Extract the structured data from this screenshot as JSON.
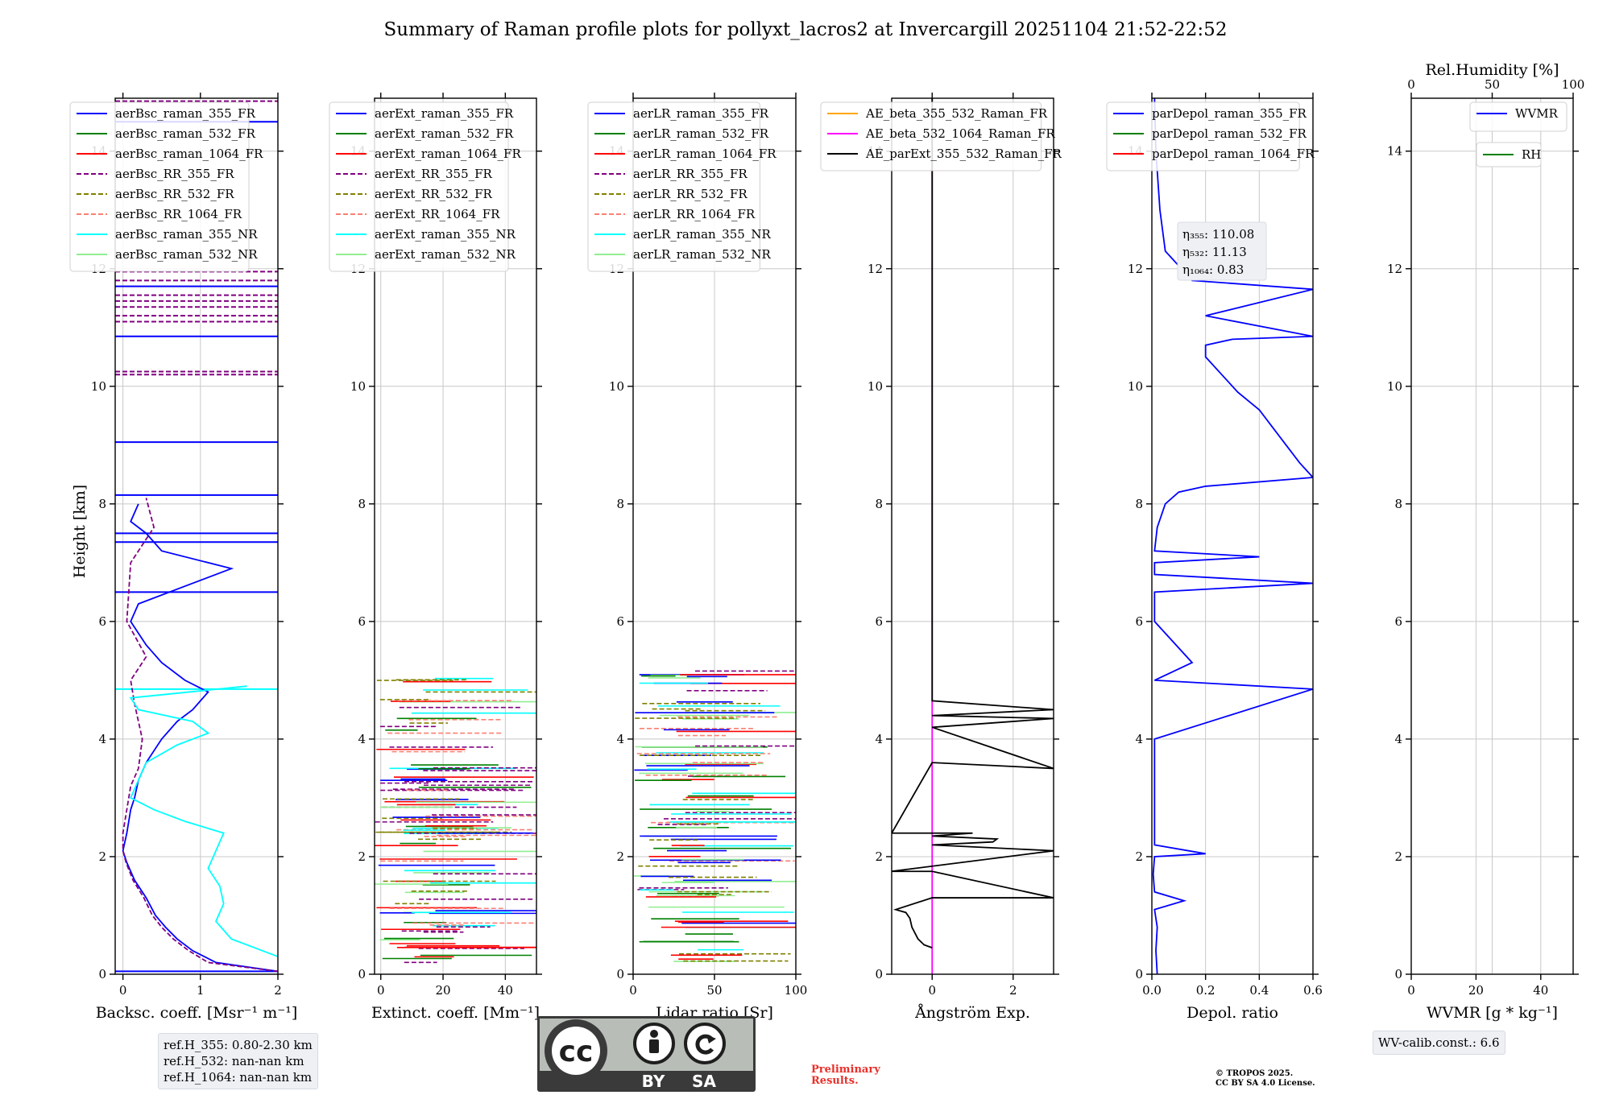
{
  "figure": {
    "title": "Summary of Raman profile plots for pollyxt_lacros2 at Invercargill 20251104 21:52-22:52",
    "ylabel": "Height [km]"
  },
  "chart_data": [
    {
      "type": "line",
      "id": "backscatter",
      "xlabel": "Backsc. coeff. [Msr⁻¹ m⁻¹]",
      "xlim": [
        -0.1,
        2
      ],
      "ylim": [
        0,
        14.9
      ],
      "xticks": [
        0,
        1,
        2
      ],
      "xtick_labels": [
        "0",
        "1",
        "2"
      ],
      "yticks": [
        0,
        2,
        4,
        6,
        8,
        10,
        12,
        14
      ],
      "ytick_labels": [
        "0",
        "2",
        "4",
        "6",
        "8",
        "10",
        "12",
        "14"
      ],
      "grid": true,
      "legend": "top-left",
      "legend_entries": [
        {
          "name": "aerBsc_raman_355_FR",
          "color": "#0000ff",
          "dash": false
        },
        {
          "name": "aerBsc_raman_532_FR",
          "color": "#008000",
          "dash": false
        },
        {
          "name": "aerBsc_raman_1064_FR",
          "color": "#ff0000",
          "dash": false
        },
        {
          "name": "aerBsc_RR_355_FR",
          "color": "#800080",
          "dash": true
        },
        {
          "name": "aerBsc_RR_532_FR",
          "color": "#808000",
          "dash": true
        },
        {
          "name": "aerBsc_RR_1064_FR",
          "color": "#fa8072",
          "dash": true
        },
        {
          "name": "aerBsc_raman_355_NR",
          "color": "#00ffff",
          "dash": false
        },
        {
          "name": "aerBsc_raman_532_NR",
          "color": "#90ee90",
          "dash": false
        }
      ],
      "series": [
        {
          "name": "aerBsc_raman_355_FR",
          "color": "#0000ff",
          "dash": false,
          "x": [
            2.0,
            1.2,
            0.9,
            0.7,
            0.55,
            0.42,
            0.3,
            0.15,
            0.05,
            0.0,
            0.05,
            0.1,
            0.15,
            0.2,
            0.3,
            0.5,
            0.7,
            0.9,
            1.1,
            0.8,
            0.5,
            0.3,
            0.2,
            0.1,
            0.2,
            0.8,
            1.4,
            0.5,
            0.3,
            0.1,
            0.2
          ],
          "y": [
            0.05,
            0.2,
            0.4,
            0.6,
            0.8,
            1.0,
            1.3,
            1.6,
            1.9,
            2.1,
            2.4,
            2.8,
            3.0,
            3.3,
            3.6,
            4.0,
            4.3,
            4.5,
            4.8,
            5.0,
            5.3,
            5.6,
            5.8,
            6.0,
            6.3,
            6.6,
            6.9,
            7.2,
            7.5,
            7.7,
            8.0
          ]
        },
        {
          "name": "aerBsc_RR_355_FR",
          "color": "#800080",
          "dash": true,
          "x": [
            2.0,
            1.1,
            0.85,
            0.65,
            0.5,
            0.38,
            0.27,
            0.13,
            0.04,
            0.0,
            0.0,
            0.05,
            0.1,
            0.2,
            0.25,
            0.15,
            0.1,
            0.3,
            0.05,
            0.1,
            0.4,
            0.3
          ],
          "y": [
            0.05,
            0.2,
            0.4,
            0.6,
            0.8,
            1.0,
            1.3,
            1.6,
            1.9,
            2.1,
            2.4,
            2.8,
            3.2,
            3.5,
            4.0,
            4.6,
            5.0,
            5.4,
            6.0,
            7.0,
            7.6,
            8.1
          ]
        },
        {
          "name": "aerBsc_raman_355_NR",
          "color": "#00ffff",
          "dash": false,
          "x": [
            2.0,
            1.4,
            1.2,
            1.3,
            1.25,
            1.1,
            1.2,
            1.3,
            0.8,
            0.4,
            0.1,
            0.2,
            0.3,
            0.7,
            1.1,
            0.9,
            0.2,
            0.1,
            1.6
          ],
          "y": [
            0.3,
            0.6,
            0.9,
            1.2,
            1.5,
            1.8,
            2.1,
            2.4,
            2.6,
            2.8,
            3.0,
            3.3,
            3.6,
            3.9,
            4.1,
            4.3,
            4.5,
            4.7,
            4.9
          ]
        }
      ],
      "hlines": [
        {
          "y": 0.05,
          "color": "#0000ff"
        },
        {
          "y": 4.85,
          "color": "#00ffff"
        },
        {
          "y": 6.5,
          "color": "#0000ff"
        },
        {
          "y": 7.35,
          "color": "#0000ff"
        },
        {
          "y": 7.5,
          "color": "#0000ff"
        },
        {
          "y": 8.15,
          "color": "#0000ff"
        },
        {
          "y": 9.05,
          "color": "#0000ff"
        },
        {
          "y": 10.2,
          "color": "#800080"
        },
        {
          "y": 10.25,
          "color": "#800080"
        },
        {
          "y": 10.85,
          "color": "#0000ff"
        },
        {
          "y": 11.1,
          "color": "#800080"
        },
        {
          "y": 11.2,
          "color": "#800080"
        },
        {
          "y": 11.35,
          "color": "#800080"
        },
        {
          "y": 11.45,
          "color": "#800080"
        },
        {
          "y": 11.55,
          "color": "#800080"
        },
        {
          "y": 11.7,
          "color": "#0000ff"
        },
        {
          "y": 11.8,
          "color": "#800080"
        },
        {
          "y": 11.95,
          "color": "#800080"
        },
        {
          "y": 14.5,
          "color": "#0000ff"
        },
        {
          "y": 14.85,
          "color": "#800080"
        }
      ]
    },
    {
      "type": "line",
      "id": "extinction",
      "xlabel": "Extinct. coeff. [Mm⁻¹]",
      "xlim": [
        -2,
        50
      ],
      "ylim": [
        0,
        14.9
      ],
      "xticks": [
        0,
        20,
        40
      ],
      "xtick_labels": [
        "0",
        "20",
        "40"
      ],
      "yticks": [
        0,
        2,
        4,
        6,
        8,
        10,
        12,
        14
      ],
      "ytick_labels": [
        "0",
        "2",
        "4",
        "6",
        "8",
        "10",
        "12",
        "14"
      ],
      "grid": true,
      "legend": "top-left",
      "legend_entries": [
        {
          "name": "aerExt_raman_355_FR",
          "color": "#0000ff",
          "dash": false
        },
        {
          "name": "aerExt_raman_532_FR",
          "color": "#008000",
          "dash": false
        },
        {
          "name": "aerExt_raman_1064_FR",
          "color": "#ff0000",
          "dash": false
        },
        {
          "name": "aerExt_RR_355_FR",
          "color": "#800080",
          "dash": true
        },
        {
          "name": "aerExt_RR_532_FR",
          "color": "#808000",
          "dash": true
        },
        {
          "name": "aerExt_RR_1064_FR",
          "color": "#fa8072",
          "dash": true
        },
        {
          "name": "aerExt_raman_355_NR",
          "color": "#00ffff",
          "dash": false
        },
        {
          "name": "aerExt_raman_532_NR",
          "color": "#90ee90",
          "dash": false
        }
      ],
      "series": [],
      "hlines_band": {
        "from": 0.2,
        "to": 5.2
      }
    },
    {
      "type": "line",
      "id": "lidar_ratio",
      "xlabel": "Lidar ratio [Sr]",
      "xlim": [
        0,
        100
      ],
      "ylim": [
        0,
        14.9
      ],
      "xticks": [
        0,
        50,
        100
      ],
      "xtick_labels": [
        "0",
        "50",
        "100"
      ],
      "yticks": [
        0,
        2,
        4,
        6,
        8,
        10,
        12,
        14
      ],
      "ytick_labels": [
        "0",
        "2",
        "4",
        "6",
        "8",
        "10",
        "12",
        "14"
      ],
      "grid": true,
      "legend": "top-left",
      "legend_entries": [
        {
          "name": "aerLR_raman_355_FR",
          "color": "#0000ff",
          "dash": false
        },
        {
          "name": "aerLR_raman_532_FR",
          "color": "#008000",
          "dash": false
        },
        {
          "name": "aerLR_raman_1064_FR",
          "color": "#ff0000",
          "dash": false
        },
        {
          "name": "aerLR_RR_355_FR",
          "color": "#800080",
          "dash": true
        },
        {
          "name": "aerLR_RR_532_FR",
          "color": "#808000",
          "dash": true
        },
        {
          "name": "aerLR_RR_1064_FR",
          "color": "#fa8072",
          "dash": true
        },
        {
          "name": "aerLR_raman_355_NR",
          "color": "#00ffff",
          "dash": false
        },
        {
          "name": "aerLR_raman_532_NR",
          "color": "#90ee90",
          "dash": false
        }
      ],
      "series": [],
      "hlines_band": {
        "from": 0.2,
        "to": 5.2
      }
    },
    {
      "type": "line",
      "id": "angstrom",
      "xlabel": "Ångström Exp.",
      "xlim": [
        -1,
        3
      ],
      "ylim": [
        0,
        14.9
      ],
      "xticks": [
        0,
        2
      ],
      "xtick_labels": [
        "0",
        "2"
      ],
      "yticks": [
        0,
        2,
        4,
        6,
        8,
        10,
        12,
        14
      ],
      "ytick_labels": [
        "0",
        "2",
        "4",
        "6",
        "8",
        "10",
        "12",
        "14"
      ],
      "grid": true,
      "legend": "top-left",
      "legend_entries": [
        {
          "name": "AE_beta_355_532_Raman_FR",
          "color": "#ffa500",
          "dash": false
        },
        {
          "name": "AE_beta_532_1064_Raman_FR",
          "color": "#ff00ff",
          "dash": false
        },
        {
          "name": "AE_parExt_355_532_Raman_FR",
          "color": "#000000",
          "dash": false
        }
      ],
      "series": [
        {
          "name": "AE_beta_532_1064_Raman_FR",
          "color": "#ff00ff",
          "dash": false,
          "x": [
            0,
            0
          ],
          "y": [
            0,
            14.9
          ]
        },
        {
          "name": "AE_parExt_355_532_Raman_FR",
          "color": "#000000",
          "dash": false,
          "x": [
            0.0,
            -0.2,
            -0.35,
            -0.5,
            -0.55,
            -0.65,
            -0.9,
            0.0,
            3.0,
            0.0,
            -1.0,
            3.0,
            0.0,
            1.5,
            1.6,
            0.0,
            1.0,
            -1.0,
            0.0,
            3.0,
            0.0,
            3.0,
            0.0,
            3.0,
            0.0,
            0.0
          ],
          "y": [
            0.45,
            0.5,
            0.6,
            0.8,
            0.95,
            1.05,
            1.1,
            1.3,
            1.3,
            1.75,
            1.75,
            2.1,
            2.2,
            2.25,
            2.3,
            2.35,
            2.4,
            2.4,
            3.6,
            3.5,
            4.2,
            4.35,
            4.4,
            4.5,
            4.65,
            14.9
          ]
        }
      ]
    },
    {
      "type": "line",
      "id": "depolarization",
      "xlabel": "Depol. ratio",
      "xlim": [
        0,
        0.6
      ],
      "ylim": [
        0,
        14.9
      ],
      "xticks": [
        0,
        0.2,
        0.4,
        0.6
      ],
      "xtick_labels": [
        "0.0",
        "0.2",
        "0.4",
        "0.6"
      ],
      "yticks": [
        0,
        2,
        4,
        6,
        8,
        10,
        12,
        14
      ],
      "ytick_labels": [
        "0",
        "2",
        "4",
        "6",
        "8",
        "10",
        "12",
        "14"
      ],
      "grid": true,
      "legend": "top-left",
      "legend_entries": [
        {
          "name": "parDepol_raman_355_FR",
          "color": "#0000ff",
          "dash": false
        },
        {
          "name": "parDepol_raman_532_FR",
          "color": "#008000",
          "dash": false
        },
        {
          "name": "parDepol_raman_1064_FR",
          "color": "#ff0000",
          "dash": false
        }
      ],
      "annotations": [
        {
          "label": "η₃₅₅: 110.08"
        },
        {
          "label": "η₅₃₂: 11.13"
        },
        {
          "label": "η₁₀₆₄: 0.83"
        }
      ],
      "series": [
        {
          "name": "parDepol_raman_355_FR",
          "color": "#0000ff",
          "dash": false,
          "x": [
            0.02,
            0.015,
            0.02,
            0.01,
            0.12,
            0.01,
            0.005,
            0.01,
            0.2,
            0.01,
            0.01,
            0.01,
            0.6,
            0.01,
            0.15,
            0.01,
            0.01,
            0.6,
            0.01,
            0.01,
            0.4,
            0.01,
            0.02,
            0.05,
            0.1,
            0.2,
            0.6,
            0.55,
            0.5,
            0.45,
            0.4,
            0.32,
            0.26,
            0.2,
            0.2,
            0.3,
            0.6,
            0.2,
            0.6,
            0.15,
            0.05,
            0.03,
            0.015,
            0.01
          ],
          "y": [
            0.0,
            0.4,
            0.8,
            1.1,
            1.25,
            1.4,
            1.7,
            2.0,
            2.05,
            2.2,
            3.0,
            4.0,
            4.85,
            5.0,
            5.3,
            6.0,
            6.5,
            6.65,
            6.8,
            7.0,
            7.1,
            7.2,
            7.6,
            8.0,
            8.2,
            8.3,
            8.45,
            8.7,
            9.0,
            9.3,
            9.6,
            9.9,
            10.2,
            10.5,
            10.7,
            10.8,
            10.85,
            11.2,
            11.65,
            11.8,
            12.3,
            13.0,
            14.0,
            14.9
          ]
        }
      ]
    },
    {
      "type": "line",
      "id": "wvmr",
      "xlabel": "WVMR [g * kg⁻¹]",
      "xlim": [
        0,
        50
      ],
      "ylim": [
        0,
        14.9
      ],
      "xticks": [
        0,
        20,
        40
      ],
      "xtick_labels": [
        "0",
        "20",
        "40"
      ],
      "yticks": [
        0,
        2,
        4,
        6,
        8,
        10,
        12,
        14
      ],
      "ytick_labels": [
        "0",
        "2",
        "4",
        "6",
        "8",
        "10",
        "12",
        "14"
      ],
      "grid": true,
      "legend": "top-right",
      "legend_entries": [
        {
          "name": "WVMR",
          "color": "#0000ff",
          "dash": false
        },
        {
          "name": "RH",
          "color": "#008000",
          "dash": false
        }
      ],
      "top_axis": {
        "label": "Rel.Humidity [%]",
        "lim": [
          0,
          100
        ],
        "ticks": [
          0,
          50,
          100
        ],
        "tick_labels": [
          "0",
          "50",
          "100"
        ]
      },
      "series": []
    }
  ],
  "notes": {
    "ref_heights": [
      "ref.H_355: 0.80-2.30 km",
      "ref.H_532: nan-nan km",
      "ref.H_1064: nan-nan km"
    ],
    "wv_calib": "WV-calib.const.: 6.6",
    "preliminary": [
      "Preliminary",
      "Results."
    ],
    "copyright": [
      "© TROPOS 2025.",
      "CC BY SA 4.0 License."
    ],
    "license_badge": {
      "cc": "cc",
      "by": "BY",
      "sa": "SA",
      "color": "#b8bdb8"
    }
  }
}
